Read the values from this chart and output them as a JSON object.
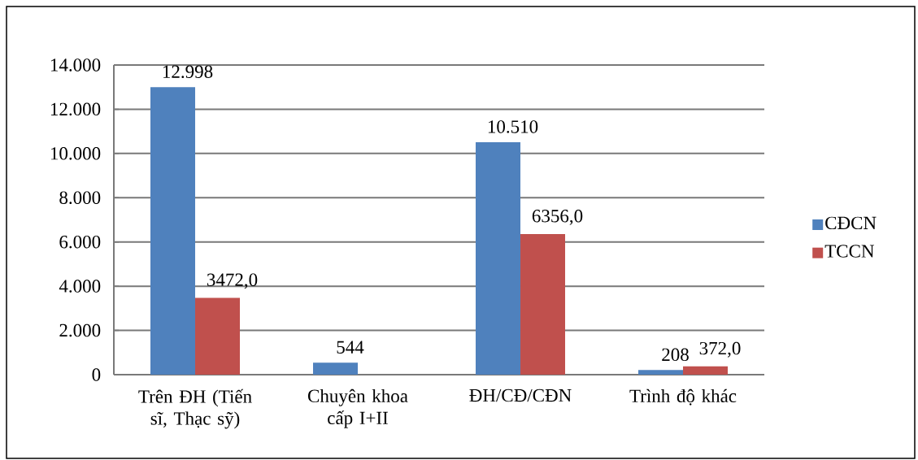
{
  "chart_data": {
    "type": "bar",
    "categories": [
      "Trên ĐH (Tiến sĩ, Thạc sỹ)",
      "Chuyên khoa cấp I+II",
      "ĐH/CĐ/CĐN",
      "Trình độ khác"
    ],
    "series": [
      {
        "name": "CĐCN",
        "color": "#4f81bd",
        "values": [
          12998,
          544,
          10510,
          208
        ],
        "value_labels": [
          "12.998",
          "544",
          "10.510",
          "208"
        ]
      },
      {
        "name": "TCCN",
        "color": "#c0504d",
        "values": [
          3472,
          null,
          6356,
          372
        ],
        "value_labels": [
          "3472,0",
          null,
          "6356,0",
          "372,0"
        ]
      }
    ],
    "ylim": [
      0,
      14000
    ],
    "yticks": [
      0,
      {
        "value": 2000,
        "label": "2.000"
      },
      {
        "value": 4000,
        "label": "4.000"
      },
      {
        "value": 6000,
        "label": "6.000"
      },
      {
        "value": 8000,
        "label": "8.000"
      },
      {
        "value": 10000,
        "label": "10.000"
      },
      {
        "value": 12000,
        "label": "12.000"
      },
      {
        "value": 14000,
        "label": "14.000"
      }
    ],
    "grid": "y",
    "legend": "right"
  }
}
